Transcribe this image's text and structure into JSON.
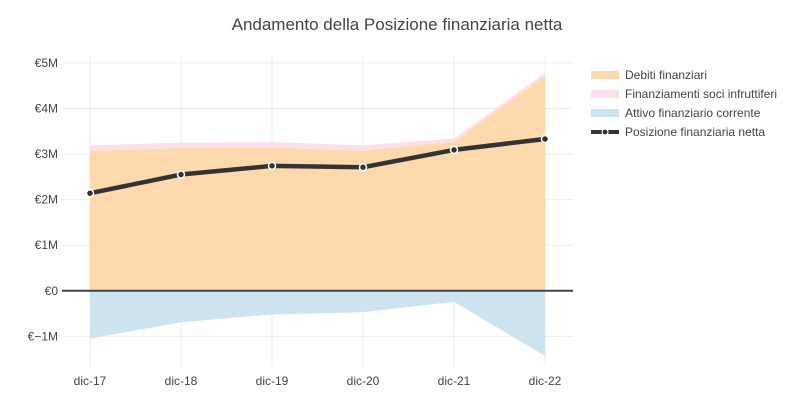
{
  "chart_data": {
    "type": "area",
    "title": "Andamento della Posizione finanziaria netta",
    "xlabel": "",
    "ylabel": "",
    "categories": [
      "dic-17",
      "dic-18",
      "dic-19",
      "dic-20",
      "dic-21",
      "dic-22"
    ],
    "y_ticks": [
      {
        "value": -1,
        "label": "€−1M"
      },
      {
        "value": 0,
        "label": "€0"
      },
      {
        "value": 1,
        "label": "€1M"
      },
      {
        "value": 2,
        "label": "€2M"
      },
      {
        "value": 3,
        "label": "€3M"
      },
      {
        "value": 4,
        "label": "€4M"
      },
      {
        "value": 5,
        "label": "€5M"
      }
    ],
    "ylim": [
      -1.65,
      5.15
    ],
    "grid": true,
    "legend_position": "top-right",
    "series": [
      {
        "name": "Debiti finanziari",
        "kind": "stacked-area",
        "color": "#fdd9ad",
        "values": [
          3.07,
          3.13,
          3.14,
          3.07,
          3.27,
          4.72
        ]
      },
      {
        "name": "Finanziamenti soci infruttiferi",
        "kind": "stacked-area",
        "color": "#fbe0ec",
        "values": [
          0.12,
          0.12,
          0.12,
          0.12,
          0.07,
          0.06
        ]
      },
      {
        "name": "Attivo finanziario corrente",
        "kind": "area",
        "color": "#cde4f0",
        "values": [
          -1.05,
          -0.69,
          -0.52,
          -0.47,
          -0.24,
          -1.43
        ]
      },
      {
        "name": "Posizione finanziaria netta",
        "kind": "line",
        "color": "#333333",
        "values": [
          2.14,
          2.55,
          2.74,
          2.71,
          3.09,
          3.33
        ]
      }
    ]
  }
}
